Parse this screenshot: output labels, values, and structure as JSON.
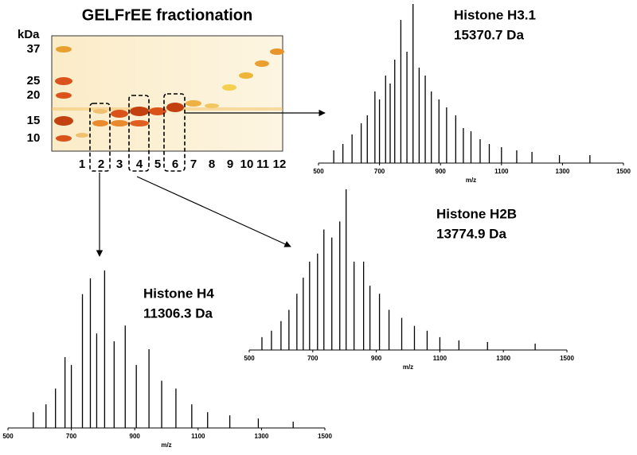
{
  "gel": {
    "title": "GELFrEE fractionation",
    "unit": "kDa",
    "markers": [
      "37",
      "25",
      "20",
      "15",
      "10"
    ],
    "lanes": [
      "1",
      "2",
      "3",
      "4",
      "5",
      "6",
      "7",
      "8",
      "9",
      "10",
      "11",
      "12"
    ]
  },
  "chart_data": [
    {
      "type": "stem",
      "title": "Histone H3.1",
      "subtitle": "15370.7 Da",
      "xlabel": "m/z",
      "color": "#000000",
      "x": [
        550,
        580,
        610,
        640,
        660,
        685,
        700,
        720,
        735,
        750,
        770,
        790,
        810,
        830,
        850,
        870,
        895,
        920,
        950,
        975,
        1000,
        1030,
        1060,
        1100,
        1150,
        1200,
        1290,
        1390
      ],
      "values": [
        8,
        12,
        18,
        25,
        30,
        45,
        40,
        55,
        50,
        65,
        90,
        70,
        100,
        60,
        55,
        45,
        40,
        35,
        30,
        22,
        20,
        15,
        12,
        10,
        8,
        7,
        5,
        5
      ],
      "xlim": [
        500,
        1500
      ],
      "xticks": [
        500,
        700,
        900,
        1100,
        1300,
        1500
      ],
      "ylim": [
        0,
        100
      ]
    },
    {
      "type": "stem",
      "title": "Histone H2B",
      "subtitle": "13774.9 Da",
      "xlabel": "m/z",
      "color": "#000000",
      "x": [
        540,
        570,
        600,
        625,
        650,
        670,
        690,
        715,
        735,
        760,
        785,
        805,
        830,
        860,
        880,
        910,
        940,
        980,
        1020,
        1060,
        1100,
        1160,
        1250,
        1400
      ],
      "values": [
        8,
        12,
        18,
        25,
        35,
        45,
        55,
        60,
        75,
        70,
        80,
        100,
        55,
        55,
        40,
        35,
        25,
        20,
        15,
        12,
        8,
        6,
        5,
        4
      ],
      "xlim": [
        500,
        1500
      ],
      "xticks": [
        500,
        700,
        900,
        1100,
        1300,
        1500
      ],
      "ylim": [
        0,
        100
      ]
    },
    {
      "type": "stem",
      "title": "Histone H4",
      "subtitle": "11306.3 Da",
      "xlabel": "m/z",
      "color": "#000000",
      "x": [
        580,
        620,
        650,
        680,
        700,
        735,
        760,
        780,
        805,
        835,
        870,
        905,
        945,
        985,
        1030,
        1080,
        1130,
        1200,
        1290,
        1400
      ],
      "values": [
        10,
        15,
        25,
        45,
        40,
        85,
        95,
        60,
        100,
        55,
        65,
        40,
        50,
        30,
        25,
        15,
        10,
        8,
        6,
        4
      ],
      "xlim": [
        500,
        1500
      ],
      "xticks": [
        500,
        700,
        900,
        1100,
        1300,
        1500
      ],
      "ylim": [
        0,
        100
      ]
    }
  ]
}
